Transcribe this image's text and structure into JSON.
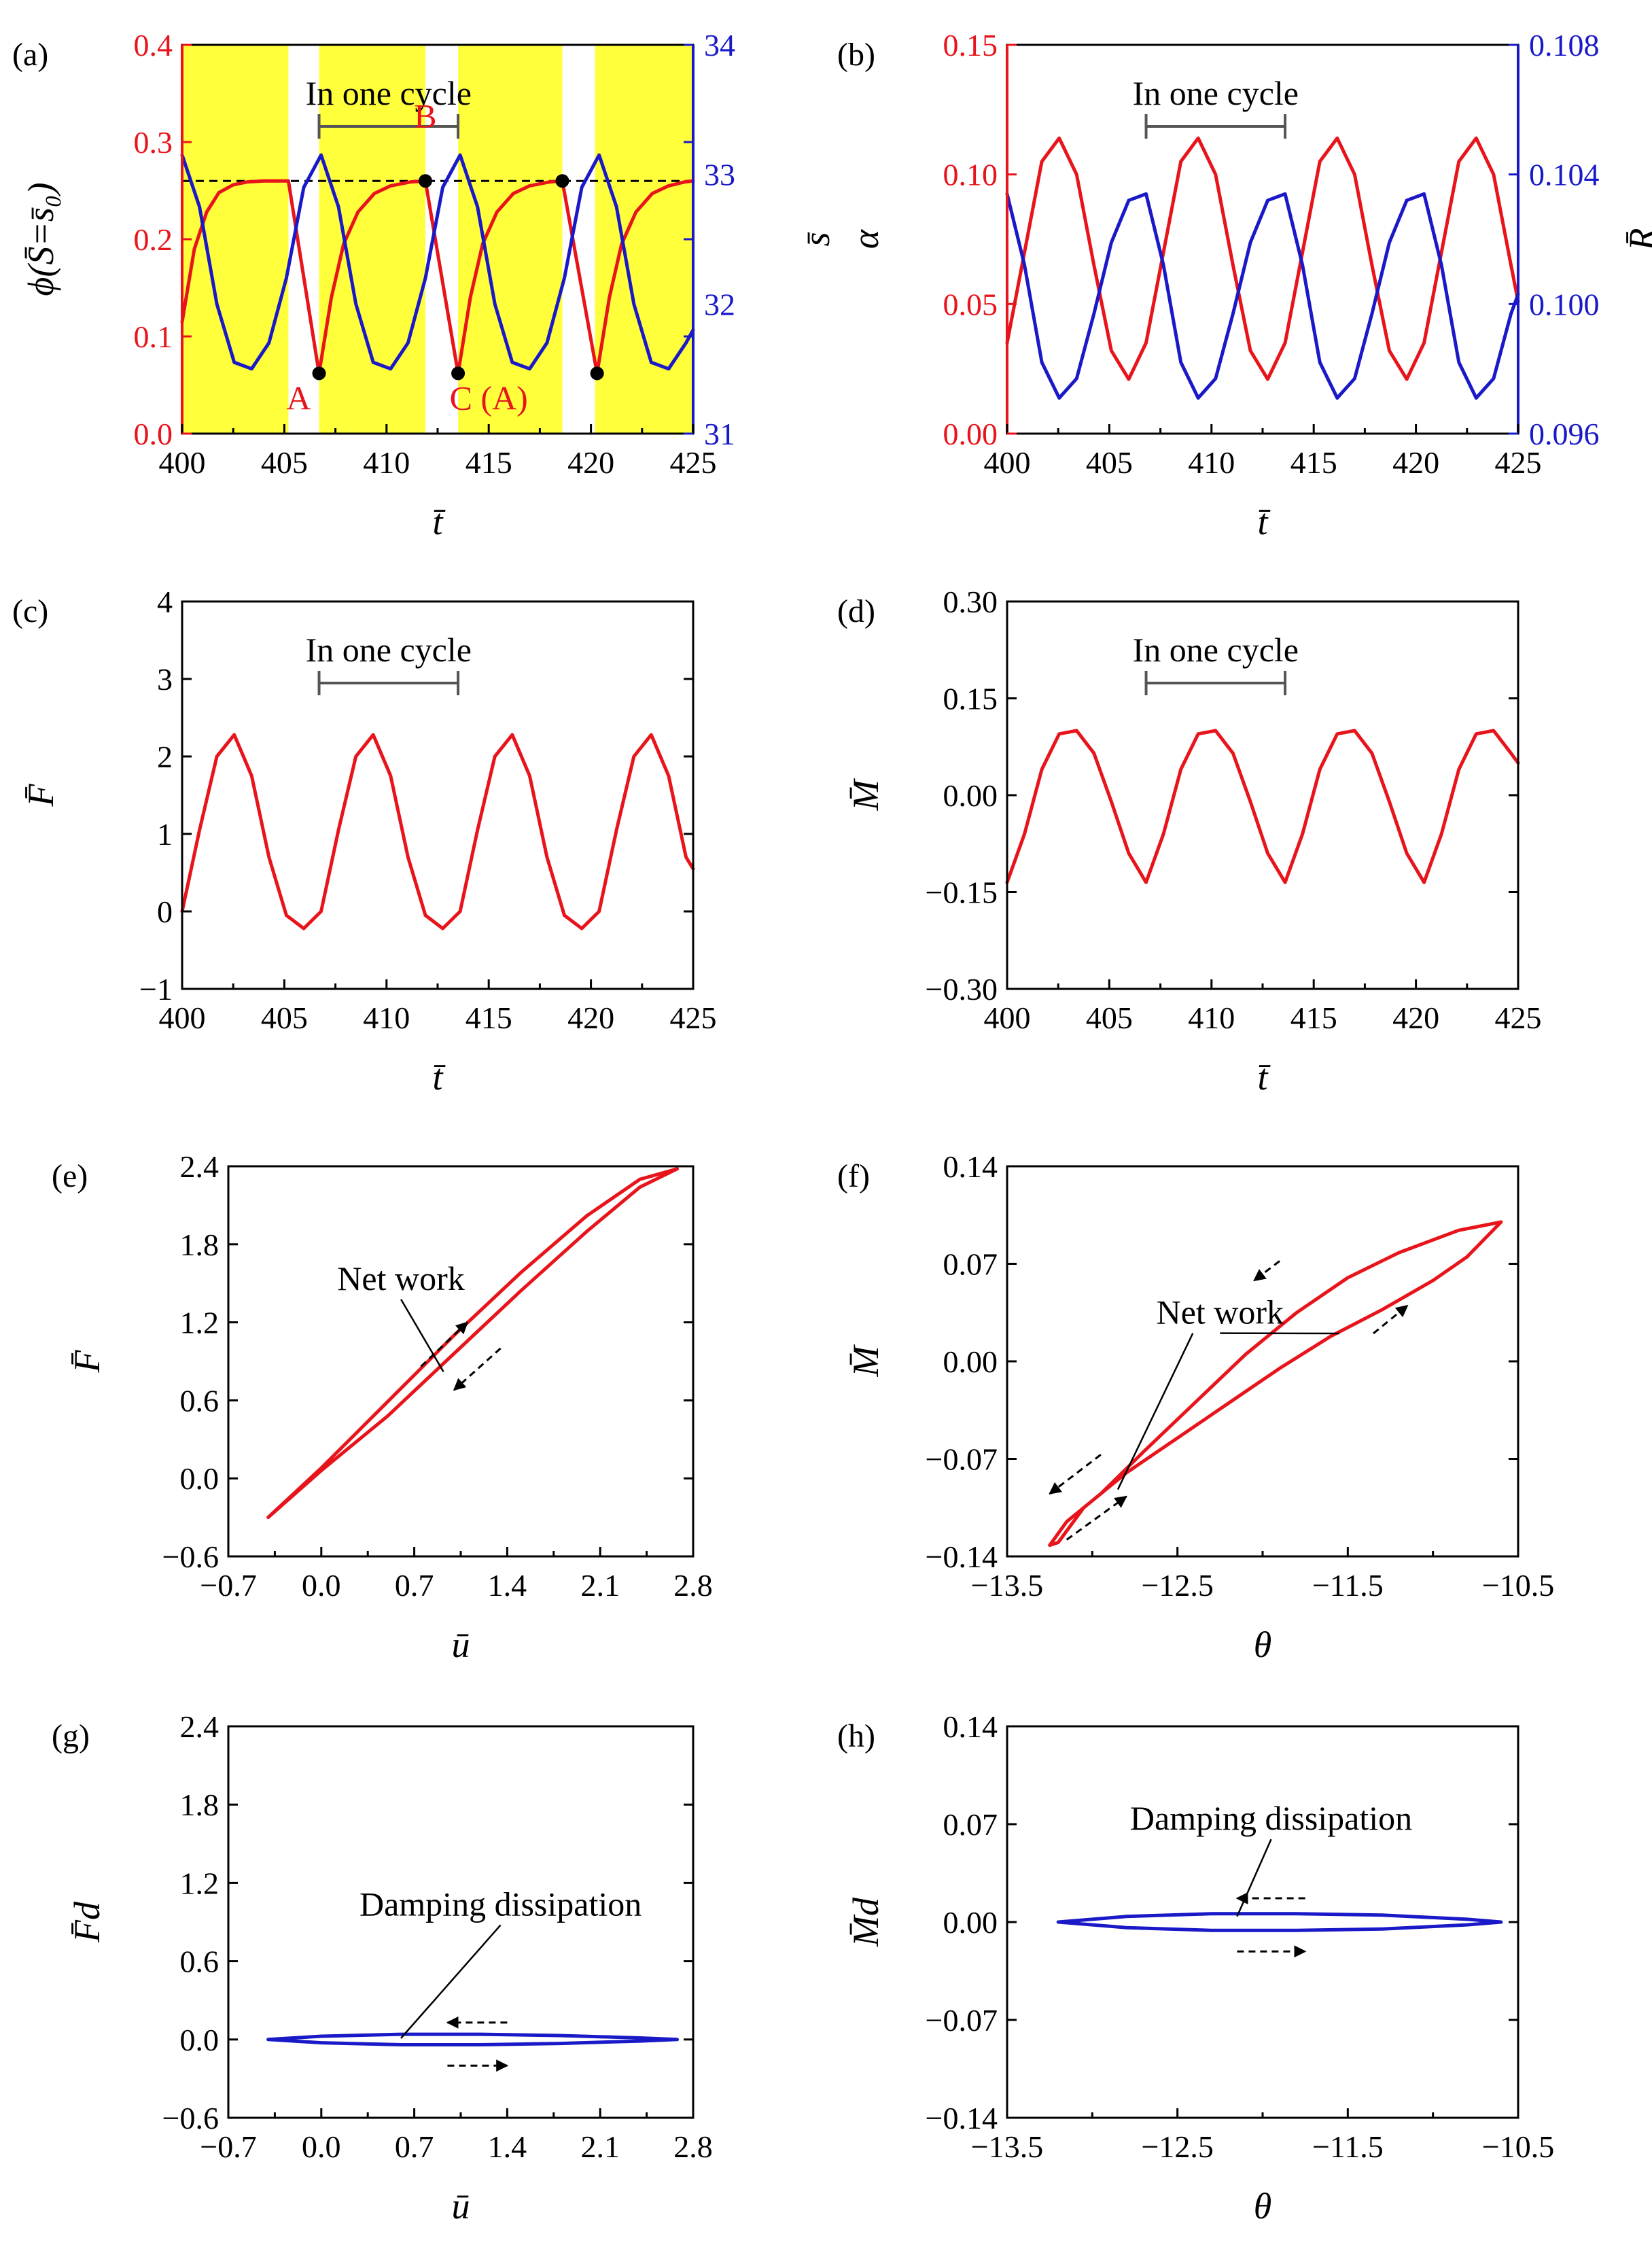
{
  "colors": {
    "red": "#e8141b",
    "blue": "#1919c8",
    "yellow": "#ffff3c",
    "black": "#000000",
    "gray": "#555555"
  },
  "chart_data": [
    {
      "id": "a",
      "panel_label": "(a)",
      "type": "line",
      "xlabel": "t̄",
      "ylabel": "ϕ(S̄=s̄₀)",
      "y2label": "s̄",
      "xlim": [
        400,
        425
      ],
      "ylim": [
        0.0,
        0.4
      ],
      "y2lim": [
        31,
        34
      ],
      "xticks": [
        "400",
        "405",
        "410",
        "415",
        "420",
        "425"
      ],
      "yticks": [
        "0.0",
        "0.1",
        "0.2",
        "0.3",
        "0.4"
      ],
      "y2ticks": [
        "31",
        "32",
        "33",
        "34"
      ],
      "shaded_intervals": [
        [
          400,
          405.2
        ],
        [
          406.7,
          411.9
        ],
        [
          413.5,
          418.6
        ],
        [
          420.2,
          425
        ]
      ],
      "reference_line_y": 0.26,
      "cycle_bracket": {
        "label": "In one cycle",
        "from": 406.7,
        "to": 413.5
      },
      "annotations": [
        {
          "text": "A",
          "x": 405.7,
          "y": 0.025
        },
        {
          "text": "B",
          "x": 411.9,
          "y": 0.315
        },
        {
          "text": "C (A)",
          "x": 415,
          "y": 0.025
        }
      ],
      "markers": [
        {
          "x": 406.7,
          "y": 0.062
        },
        {
          "x": 411.9,
          "y": 0.26
        },
        {
          "x": 413.5,
          "y": 0.062
        },
        {
          "x": 418.6,
          "y": 0.26
        },
        {
          "x": 420.3,
          "y": 0.062
        }
      ],
      "series": [
        {
          "name": "ϕ",
          "axis": "left",
          "color": "red",
          "x": [
            400,
            400.6,
            401.2,
            401.8,
            402.5,
            403.2,
            404,
            405.2,
            406.7,
            407.3,
            407.9,
            408.6,
            409.4,
            410.2,
            411.2,
            411.9,
            413.5,
            414.1,
            414.7,
            415.4,
            416.2,
            417,
            418,
            418.6,
            420.3,
            420.9,
            421.5,
            422.2,
            423,
            423.8,
            424.6,
            425
          ],
          "y": [
            0.115,
            0.19,
            0.228,
            0.248,
            0.256,
            0.259,
            0.26,
            0.26,
            0.062,
            0.14,
            0.195,
            0.228,
            0.247,
            0.255,
            0.259,
            0.26,
            0.062,
            0.14,
            0.195,
            0.228,
            0.247,
            0.255,
            0.259,
            0.26,
            0.062,
            0.14,
            0.195,
            0.228,
            0.247,
            0.255,
            0.259,
            0.26
          ]
        },
        {
          "name": "s̄",
          "axis": "right",
          "color": "blue",
          "x": [
            400,
            400.85,
            401.7,
            402.55,
            403.4,
            404.25,
            405.1,
            405.95,
            406.8,
            407.65,
            408.5,
            409.35,
            410.2,
            411.05,
            411.9,
            412.75,
            413.6,
            414.45,
            415.3,
            416.15,
            417,
            417.85,
            418.7,
            419.55,
            420.4,
            421.25,
            422.1,
            422.95,
            423.8,
            424.65,
            425
          ],
          "y": [
            33.15,
            32.75,
            32.0,
            31.55,
            31.5,
            31.7,
            32.2,
            32.9,
            33.15,
            32.75,
            32.0,
            31.55,
            31.5,
            31.7,
            32.2,
            32.9,
            33.15,
            32.75,
            32.0,
            31.55,
            31.5,
            31.7,
            32.2,
            32.9,
            33.15,
            32.75,
            32.0,
            31.55,
            31.5,
            31.7,
            31.8
          ]
        }
      ]
    },
    {
      "id": "b",
      "panel_label": "(b)",
      "type": "line",
      "xlabel": "t̄",
      "ylabel": "α",
      "y2label": "R̄",
      "xlim": [
        400,
        425
      ],
      "ylim": [
        0.0,
        0.15
      ],
      "y2lim": [
        0.096,
        0.108
      ],
      "xticks": [
        "400",
        "405",
        "410",
        "415",
        "420",
        "425"
      ],
      "yticks": [
        "0.00",
        "0.05",
        "0.10",
        "0.15"
      ],
      "y2ticks": [
        "0.096",
        "0.100",
        "0.104",
        "0.108"
      ],
      "cycle_bracket": {
        "label": "In one cycle",
        "from": 406.8,
        "to": 413.6
      },
      "series": [
        {
          "name": "α",
          "axis": "left",
          "color": "red",
          "x": [
            400,
            400.85,
            401.7,
            402.55,
            403.4,
            404.25,
            405.1,
            405.95,
            406.8,
            407.65,
            408.5,
            409.35,
            410.2,
            411.05,
            411.9,
            412.75,
            413.6,
            414.45,
            415.3,
            416.15,
            417,
            417.85,
            418.7,
            419.55,
            420.4,
            421.25,
            422.1,
            422.95,
            423.8,
            424.65,
            425
          ],
          "y": [
            0.035,
            0.07,
            0.105,
            0.114,
            0.1,
            0.065,
            0.032,
            0.021,
            0.035,
            0.07,
            0.105,
            0.114,
            0.1,
            0.065,
            0.032,
            0.021,
            0.035,
            0.07,
            0.105,
            0.114,
            0.1,
            0.065,
            0.032,
            0.021,
            0.035,
            0.07,
            0.105,
            0.114,
            0.1,
            0.065,
            0.051
          ]
        },
        {
          "name": "R̄",
          "axis": "right",
          "color": "blue",
          "x": [
            400,
            400.85,
            401.7,
            402.55,
            403.4,
            404.25,
            405.1,
            405.95,
            406.8,
            407.65,
            408.5,
            409.35,
            410.2,
            411.05,
            411.9,
            412.75,
            413.6,
            414.45,
            415.3,
            416.15,
            417,
            417.85,
            418.7,
            419.55,
            420.4,
            421.25,
            422.1,
            422.95,
            423.8,
            424.65,
            425
          ],
          "y": [
            0.1034,
            0.1012,
            0.0982,
            0.0971,
            0.0977,
            0.0997,
            0.1019,
            0.1032,
            0.1034,
            0.1012,
            0.0982,
            0.0971,
            0.0977,
            0.0997,
            0.1019,
            0.1032,
            0.1034,
            0.1012,
            0.0982,
            0.0971,
            0.0977,
            0.0997,
            0.1019,
            0.1032,
            0.1034,
            0.1012,
            0.0982,
            0.0971,
            0.0977,
            0.0997,
            0.1003
          ]
        }
      ]
    },
    {
      "id": "c",
      "panel_label": "(c)",
      "type": "line",
      "xlabel": "t̄",
      "ylabel": "F̄",
      "xlim": [
        400,
        425
      ],
      "ylim": [
        -1,
        4
      ],
      "xticks": [
        "400",
        "405",
        "410",
        "415",
        "420",
        "425"
      ],
      "yticks": [
        "−1",
        "0",
        "1",
        "2",
        "3",
        "4"
      ],
      "cycle_bracket": {
        "label": "In one cycle",
        "from": 406.7,
        "to": 413.5
      },
      "series": [
        {
          "name": "F̄",
          "axis": "left",
          "color": "red",
          "x": [
            400,
            400.85,
            401.7,
            402.55,
            403.4,
            404.25,
            405.1,
            405.95,
            406.8,
            407.65,
            408.5,
            409.35,
            410.2,
            411.05,
            411.9,
            412.75,
            413.6,
            414.45,
            415.3,
            416.15,
            417,
            417.85,
            418.7,
            419.55,
            420.4,
            421.25,
            422.1,
            422.95,
            423.8,
            424.65,
            425
          ],
          "y": [
            0.0,
            1.05,
            2.0,
            2.28,
            1.75,
            0.7,
            -0.05,
            -0.22,
            0.0,
            1.05,
            2.0,
            2.28,
            1.75,
            0.7,
            -0.05,
            -0.22,
            0.0,
            1.05,
            2.0,
            2.28,
            1.75,
            0.7,
            -0.05,
            -0.22,
            0.0,
            1.05,
            2.0,
            2.28,
            1.75,
            0.7,
            0.55
          ]
        }
      ]
    },
    {
      "id": "d",
      "panel_label": "(d)",
      "type": "line",
      "xlabel": "t̄",
      "ylabel": "M̄",
      "xlim": [
        400,
        425
      ],
      "ylim": [
        -0.3,
        0.3
      ],
      "xticks": [
        "400",
        "405",
        "410",
        "415",
        "420",
        "425"
      ],
      "yticks": [
        "−0.30",
        "−0.15",
        "0.00",
        "0.15",
        "0.30"
      ],
      "cycle_bracket": {
        "label": "In one cycle",
        "from": 406.8,
        "to": 413.6
      },
      "series": [
        {
          "name": "M̄",
          "axis": "left",
          "color": "red",
          "x": [
            400,
            400.85,
            401.7,
            402.55,
            403.4,
            404.25,
            405.1,
            405.95,
            406.8,
            407.65,
            408.5,
            409.35,
            410.2,
            411.05,
            411.9,
            412.75,
            413.6,
            414.45,
            415.3,
            416.15,
            417,
            417.85,
            418.7,
            419.55,
            420.4,
            421.25,
            422.1,
            422.95,
            423.8,
            424.65,
            425
          ],
          "y": [
            -0.135,
            -0.06,
            0.04,
            0.095,
            0.1,
            0.065,
            -0.01,
            -0.09,
            -0.135,
            -0.06,
            0.04,
            0.095,
            0.1,
            0.065,
            -0.01,
            -0.09,
            -0.135,
            -0.06,
            0.04,
            0.095,
            0.1,
            0.065,
            -0.01,
            -0.09,
            -0.135,
            -0.06,
            0.04,
            0.095,
            0.1,
            0.065,
            0.05
          ]
        }
      ]
    },
    {
      "id": "e",
      "panel_label": "(e)",
      "type": "line",
      "xlabel": "ū",
      "ylabel": "F̄",
      "xlim": [
        -0.7,
        2.8
      ],
      "ylim": [
        -0.6,
        2.4
      ],
      "xticks": [
        "−0.7",
        "0.0",
        "0.7",
        "1.4",
        "2.1",
        "2.8"
      ],
      "yticks": [
        "−0.6",
        "0.0",
        "0.6",
        "1.2",
        "1.8",
        "2.4"
      ],
      "annotations": [
        {
          "text": "Net work",
          "x": 0.6,
          "y": 1.45,
          "pointer_to": {
            "x": 0.92,
            "y": 0.82
          }
        }
      ],
      "arrows": [
        {
          "from": [
            0.75,
            0.86
          ],
          "to": [
            1.1,
            1.2
          ]
        },
        {
          "from": [
            1.35,
            1.0
          ],
          "to": [
            1.0,
            0.68
          ]
        }
      ],
      "series": [
        {
          "name": "loop",
          "color": "red",
          "x": [
            -0.4,
            0.0,
            0.5,
            1.0,
            1.5,
            2.0,
            2.4,
            2.68,
            2.4,
            2.0,
            1.5,
            1.0,
            0.5,
            0.0,
            -0.4
          ],
          "y": [
            -0.3,
            0.08,
            0.59,
            1.1,
            1.58,
            2.02,
            2.3,
            2.38,
            2.24,
            1.9,
            1.44,
            0.96,
            0.48,
            0.06,
            -0.3
          ]
        }
      ]
    },
    {
      "id": "f",
      "panel_label": "(f)",
      "type": "line",
      "xlabel": "θ",
      "ylabel": "M̄",
      "xlim": [
        -13.5,
        -10.5
      ],
      "ylim": [
        -0.14,
        0.14
      ],
      "xticks": [
        "−13.5",
        "−12.5",
        "−11.5",
        "−10.5"
      ],
      "yticks": [
        "−0.14",
        "−0.07",
        "0.00",
        "0.07",
        "0.14"
      ],
      "annotations": [
        {
          "text": "Net work",
          "x": -12.25,
          "y": 0.027,
          "pointer_to": {
            "x": -11.55,
            "y": 0.02
          },
          "pointer2_to": {
            "x": -12.85,
            "y": -0.092
          }
        }
      ],
      "arrows": [
        {
          "from": [
            -11.9,
            0.072
          ],
          "to": [
            -12.05,
            0.058
          ]
        },
        {
          "from": [
            -11.35,
            0.02
          ],
          "to": [
            -11.15,
            0.04
          ]
        },
        {
          "from": [
            -12.95,
            -0.067
          ],
          "to": [
            -13.25,
            -0.095
          ]
        },
        {
          "from": [
            -13.15,
            -0.128
          ],
          "to": [
            -12.8,
            -0.097
          ]
        }
      ],
      "series": [
        {
          "name": "loop",
          "color": "red",
          "x": [
            -13.2,
            -13.05,
            -12.8,
            -12.5,
            -12.2,
            -11.9,
            -11.6,
            -11.3,
            -11.0,
            -10.8,
            -10.6,
            -10.85,
            -11.2,
            -11.5,
            -11.8,
            -12.1,
            -12.4,
            -12.7,
            -12.95,
            -13.15,
            -13.25,
            -13.2
          ],
          "y": [
            -0.13,
            -0.105,
            -0.08,
            -0.055,
            -0.03,
            -0.005,
            0.018,
            0.037,
            0.058,
            0.075,
            0.1,
            0.094,
            0.078,
            0.06,
            0.035,
            0.005,
            -0.03,
            -0.065,
            -0.095,
            -0.115,
            -0.132,
            -0.13
          ]
        }
      ]
    },
    {
      "id": "g",
      "panel_label": "(g)",
      "type": "line",
      "xlabel": "ū",
      "ylabel": "F̄d",
      "xlim": [
        -0.7,
        2.8
      ],
      "ylim": [
        -0.6,
        2.4
      ],
      "xticks": [
        "−0.7",
        "0.0",
        "0.7",
        "1.4",
        "2.1",
        "2.8"
      ],
      "yticks": [
        "−0.6",
        "0.0",
        "0.6",
        "1.2",
        "1.8",
        "2.4"
      ],
      "annotations": [
        {
          "text": "Damping dissipation",
          "x": 1.35,
          "y": 0.95,
          "pointer_to": {
            "x": 0.6,
            "y": 0.01
          }
        }
      ],
      "arrows": [
        {
          "from": [
            1.4,
            0.13
          ],
          "to": [
            0.95,
            0.13
          ]
        },
        {
          "from": [
            0.95,
            -0.2
          ],
          "to": [
            1.4,
            -0.2
          ]
        }
      ],
      "series": [
        {
          "name": "loop",
          "color": "blue",
          "x": [
            -0.4,
            0.0,
            0.6,
            1.2,
            1.8,
            2.4,
            2.68,
            2.4,
            1.8,
            1.2,
            0.6,
            0.0,
            -0.4
          ],
          "y": [
            0.0,
            0.025,
            0.04,
            0.04,
            0.03,
            0.012,
            0.0,
            -0.012,
            -0.03,
            -0.04,
            -0.04,
            -0.025,
            0.0
          ]
        }
      ]
    },
    {
      "id": "h",
      "panel_label": "(h)",
      "type": "line",
      "xlabel": "θ",
      "ylabel": "M̄d",
      "xlim": [
        -13.5,
        -10.5
      ],
      "ylim": [
        -0.14,
        0.14
      ],
      "xticks": [
        "−13.5",
        "−12.5",
        "−11.5",
        "−10.5"
      ],
      "yticks": [
        "−0.14",
        "−0.07",
        "0.00",
        "0.07",
        "0.14"
      ],
      "annotations": [
        {
          "text": "Damping dissipation",
          "x": -11.95,
          "y": 0.066,
          "pointer_to": {
            "x": -12.15,
            "y": 0.004
          }
        }
      ],
      "arrows": [
        {
          "from": [
            -11.75,
            0.017
          ],
          "to": [
            -12.15,
            0.017
          ]
        },
        {
          "from": [
            -12.15,
            -0.021
          ],
          "to": [
            -11.75,
            -0.021
          ]
        }
      ],
      "series": [
        {
          "name": "loop",
          "color": "blue",
          "x": [
            -13.2,
            -12.8,
            -12.3,
            -11.8,
            -11.3,
            -10.8,
            -10.6,
            -10.8,
            -11.3,
            -11.8,
            -12.3,
            -12.8,
            -13.2
          ],
          "y": [
            0.0,
            0.004,
            0.006,
            0.006,
            0.005,
            0.002,
            0.0,
            -0.002,
            -0.005,
            -0.006,
            -0.006,
            -0.004,
            0.0
          ]
        }
      ]
    }
  ]
}
